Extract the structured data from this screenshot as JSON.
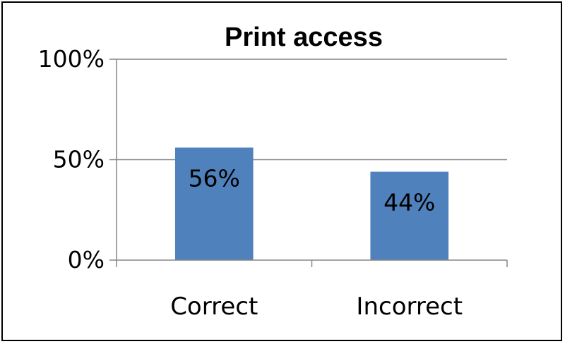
{
  "chart_data": {
    "type": "bar",
    "title": "Print access",
    "categories": [
      "Correct",
      "Incorrect"
    ],
    "values": [
      56,
      44
    ],
    "data_labels": [
      "56%",
      "44%"
    ],
    "ylim": [
      0,
      100
    ],
    "yticks": [
      0,
      50,
      100
    ],
    "ytick_labels": [
      "0%",
      "50%",
      "100%"
    ],
    "xlabel": "",
    "ylabel": "",
    "grid": true,
    "legend": "none",
    "colors": {
      "bar": "#4f81bd",
      "grid": "#868686",
      "axis": "#868686"
    }
  }
}
